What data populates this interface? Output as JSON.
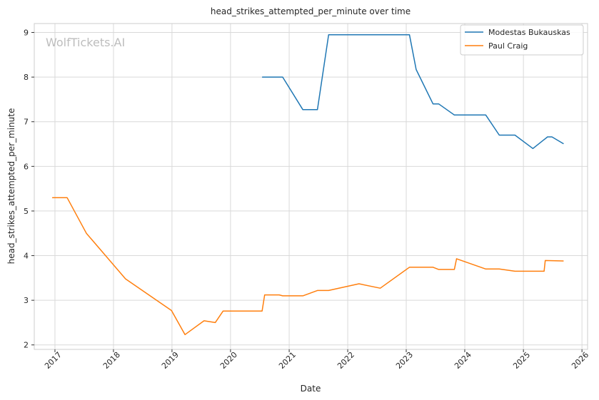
{
  "chart_data": {
    "type": "line",
    "title": "head_strikes_attempted_per_minute over time",
    "xlabel": "Date",
    "ylabel": "head_strikes_attempted_per_minute",
    "watermark": "WolfTickets.AI",
    "x_ticks": [
      "2017",
      "2018",
      "2019",
      "2020",
      "2021",
      "2022",
      "2023",
      "2024",
      "2025",
      "2026"
    ],
    "y_ticks": [
      2,
      3,
      4,
      5,
      6,
      7,
      8,
      9
    ],
    "xlim": [
      "2016-08-25",
      "2026-02-05"
    ],
    "ylim": [
      1.9,
      9.2
    ],
    "grid": true,
    "legend_position": "top-right",
    "series": [
      {
        "name": "Modestas Bukauskas",
        "color": "#1f77b4",
        "points": [
          {
            "x": "2020-07-18",
            "y": 8.0
          },
          {
            "x": "2020-11-21",
            "y": 8.0
          },
          {
            "x": "2021-03-27",
            "y": 7.27
          },
          {
            "x": "2021-06-26",
            "y": 7.27
          },
          {
            "x": "2021-09-04",
            "y": 8.95
          },
          {
            "x": "2023-01-21",
            "y": 8.95
          },
          {
            "x": "2023-03-04",
            "y": 8.17
          },
          {
            "x": "2023-06-17",
            "y": 7.4
          },
          {
            "x": "2023-07-22",
            "y": 7.4
          },
          {
            "x": "2023-10-28",
            "y": 7.15
          },
          {
            "x": "2024-05-11",
            "y": 7.15
          },
          {
            "x": "2024-08-03",
            "y": 6.7
          },
          {
            "x": "2024-11-09",
            "y": 6.7
          },
          {
            "x": "2025-03-01",
            "y": 6.4
          },
          {
            "x": "2025-05-31",
            "y": 6.66
          },
          {
            "x": "2025-06-28",
            "y": 6.66
          },
          {
            "x": "2025-09-06",
            "y": 6.51
          }
        ]
      },
      {
        "name": "Paul Craig",
        "color": "#ff7f0e",
        "points": [
          {
            "x": "2016-12-17",
            "y": 5.3
          },
          {
            "x": "2017-03-18",
            "y": 5.3
          },
          {
            "x": "2017-07-16",
            "y": 4.5
          },
          {
            "x": "2018-03-17",
            "y": 3.48
          },
          {
            "x": "2018-12-29",
            "y": 2.77
          },
          {
            "x": "2019-03-23",
            "y": 2.23
          },
          {
            "x": "2019-07-20",
            "y": 2.54
          },
          {
            "x": "2019-09-28",
            "y": 2.5
          },
          {
            "x": "2019-11-16",
            "y": 2.76
          },
          {
            "x": "2020-07-16",
            "y": 2.76
          },
          {
            "x": "2020-08-01",
            "y": 3.12
          },
          {
            "x": "2020-10-31",
            "y": 3.12
          },
          {
            "x": "2020-11-21",
            "y": 3.1
          },
          {
            "x": "2021-03-27",
            "y": 3.1
          },
          {
            "x": "2021-06-26",
            "y": 3.22
          },
          {
            "x": "2021-09-04",
            "y": 3.22
          },
          {
            "x": "2022-03-12",
            "y": 3.37
          },
          {
            "x": "2022-07-23",
            "y": 3.27
          },
          {
            "x": "2023-01-21",
            "y": 3.74
          },
          {
            "x": "2023-06-17",
            "y": 3.74
          },
          {
            "x": "2023-07-22",
            "y": 3.69
          },
          {
            "x": "2023-10-28",
            "y": 3.69
          },
          {
            "x": "2023-11-11",
            "y": 3.93
          },
          {
            "x": "2024-05-11",
            "y": 3.7
          },
          {
            "x": "2024-08-03",
            "y": 3.7
          },
          {
            "x": "2024-11-09",
            "y": 3.65
          },
          {
            "x": "2025-05-10",
            "y": 3.65
          },
          {
            "x": "2025-05-17",
            "y": 3.89
          },
          {
            "x": "2025-09-06",
            "y": 3.88
          }
        ]
      }
    ]
  }
}
